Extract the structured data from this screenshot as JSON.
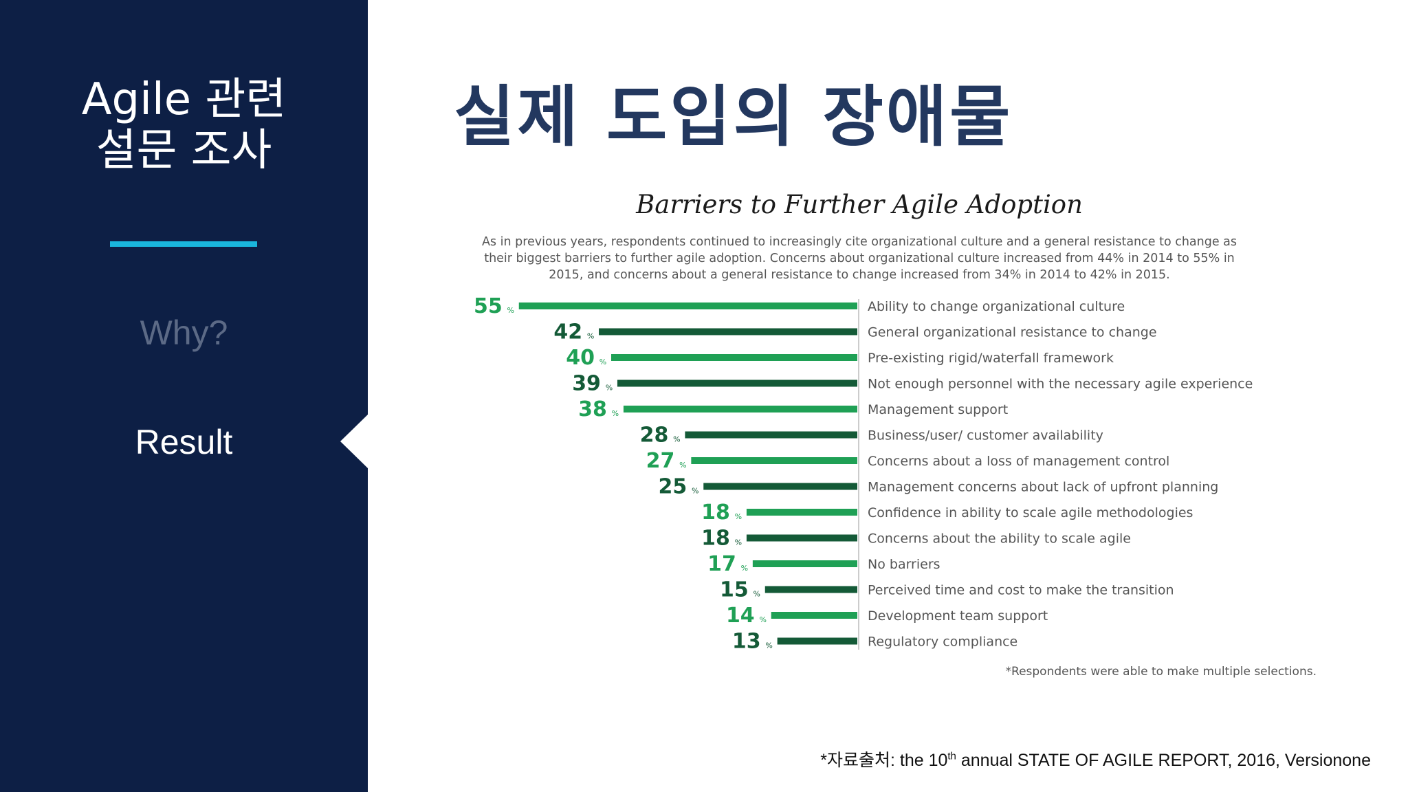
{
  "sidebar": {
    "title_line1": "Agile 관련",
    "title_line2": "설문 조사",
    "nav": [
      {
        "label": "Why?",
        "active": false
      },
      {
        "label": "Result",
        "active": true
      }
    ],
    "accent_color": "#1ab6dc",
    "background_color": "#0d1f45"
  },
  "page": {
    "title": "실제 도입의 장애물"
  },
  "chart_data": {
    "type": "bar",
    "orientation": "horizontal",
    "title": "Barriers to Further Agile Adoption",
    "description_lines": [
      "As in previous years, respondents continued to increasingly cite organizational culture and a general resistance to change as",
      "their biggest barriers to further agile adoption. Concerns about organizational culture increased from 44% in 2014 to 55% in",
      "2015, and concerns about a general resistance to change increased from 34% in 2014 to 42% in 2015."
    ],
    "value_suffix": "%",
    "categories": [
      "Ability to change organizational culture",
      "General organizational resistance to change",
      "Pre-existing rigid/waterfall framework",
      "Not enough personnel with the necessary agile experience",
      "Management support",
      "Business/user/ customer availability",
      "Concerns about a loss of management control",
      "Management concerns about lack of upfront planning",
      "Confidence in ability to scale agile methodologies",
      "Concerns about the ability to scale agile",
      "No barriers",
      "Perceived time and cost to make the transition",
      "Development team support",
      "Regulatory compliance"
    ],
    "values": [
      55,
      42,
      40,
      39,
      38,
      28,
      27,
      25,
      18,
      18,
      17,
      15,
      14,
      13
    ],
    "bar_colors": [
      "#1fa055",
      "#145a37"
    ],
    "footnote": "*Respondents were able to make multiple selections."
  },
  "source": {
    "prefix": "*자료출처: the 10",
    "superscript": "th",
    "suffix": " annual STATE OF AGILE REPORT, 2016, Versionone"
  }
}
